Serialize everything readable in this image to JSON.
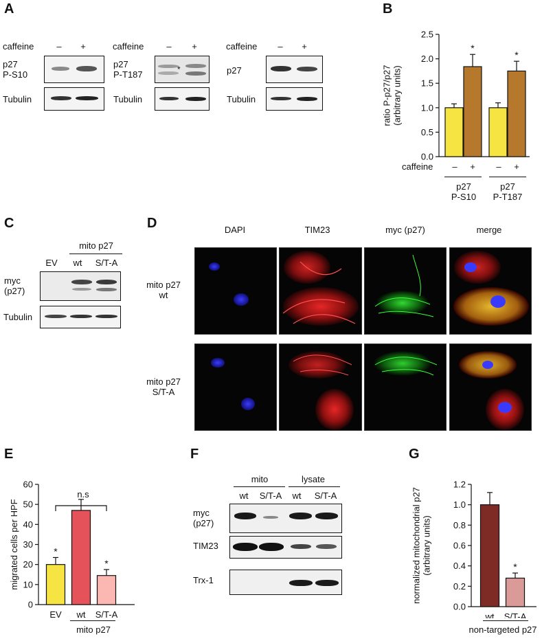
{
  "panels": {
    "A": {
      "letter": "A",
      "blots": [
        {
          "treat_label": "caffeine",
          "conditions": [
            "–",
            "+"
          ],
          "target_label": "p27\nP-S10",
          "loading_label": "Tubulin"
        },
        {
          "treat_label": "caffeine",
          "conditions": [
            "–",
            "+"
          ],
          "target_label": "p27\nP-T187",
          "loading_label": "Tubulin",
          "marker": "*"
        },
        {
          "treat_label": "caffeine",
          "conditions": [
            "–",
            "+"
          ],
          "target_label": "p27",
          "loading_label": "Tubulin"
        }
      ]
    },
    "B": {
      "letter": "B",
      "treat_label": "caffeine",
      "conditions": [
        "–",
        "+",
        "–",
        "+"
      ],
      "groups": [
        "p27\nP-S10",
        "p27\nP-T187"
      ]
    },
    "C": {
      "letter": "C",
      "group_label": "mito p27",
      "lanes": [
        "EV",
        "wt",
        "S/T-A"
      ],
      "target_label": "myc\n(p27)",
      "loading_label": "Tubulin"
    },
    "D": {
      "letter": "D",
      "columns": [
        "DAPI",
        "TIM23",
        "myc (p27)",
        "merge"
      ],
      "rows": [
        "mito p27\nwt",
        "mito p27\nS/T-A"
      ]
    },
    "E": {
      "letter": "E",
      "ns_label": "n.s",
      "group_label": "mito p27"
    },
    "F": {
      "letter": "F",
      "groups": [
        "mito",
        "lysate"
      ],
      "lanes": [
        "wt",
        "S/T-A",
        "wt",
        "S/T-A"
      ],
      "rows": [
        "myc\n(p27)",
        "TIM23",
        "Trx-1"
      ]
    },
    "G": {
      "letter": "G",
      "group_label": "non-targeted p27"
    }
  },
  "chart_data": [
    {
      "panel": "B",
      "type": "bar",
      "categories": [
        "–",
        "+",
        "–",
        "+"
      ],
      "values": [
        1.0,
        1.84,
        1.0,
        1.75
      ],
      "errors": [
        0.08,
        0.25,
        0.1,
        0.2
      ],
      "significance": [
        "",
        "*",
        "",
        "*"
      ],
      "colors": [
        "#f6e443",
        "#b5782c",
        "#f6e443",
        "#b5782c"
      ],
      "ylabel": "ratio P-p27/p27\n(arbitrary units)",
      "ylim": [
        0,
        2.5
      ],
      "yticks": [
        "0.0",
        "0.5",
        "1.0",
        "1.5",
        "2.0",
        "2.5"
      ],
      "grid": false
    },
    {
      "panel": "E",
      "type": "bar",
      "categories": [
        "EV",
        "wt",
        "S/T-A"
      ],
      "values": [
        20,
        47,
        14.5
      ],
      "errors": [
        3.5,
        5.5,
        3
      ],
      "significance": [
        "*",
        "",
        "*"
      ],
      "colors": [
        "#f6e443",
        "#e5525a",
        "#fbb7b1"
      ],
      "ylabel": "migrated cells per HPF",
      "ylim": [
        0,
        60
      ],
      "yticks": [
        "0",
        "10",
        "20",
        "30",
        "40",
        "50",
        "60"
      ],
      "grid": false
    },
    {
      "panel": "G",
      "type": "bar",
      "categories": [
        "wt",
        "S/T-A"
      ],
      "values": [
        1.0,
        0.28
      ],
      "errors": [
        0.12,
        0.05
      ],
      "significance": [
        "",
        "*"
      ],
      "colors": [
        "#7e2b26",
        "#d99a98"
      ],
      "ylabel": "normalized mitochondrial p27\n(arbitrary units)",
      "ylim": [
        0,
        1.2
      ],
      "yticks": [
        "0.0",
        "0.2",
        "0.4",
        "0.6",
        "0.8",
        "1.0",
        "1.2"
      ],
      "grid": false
    }
  ]
}
